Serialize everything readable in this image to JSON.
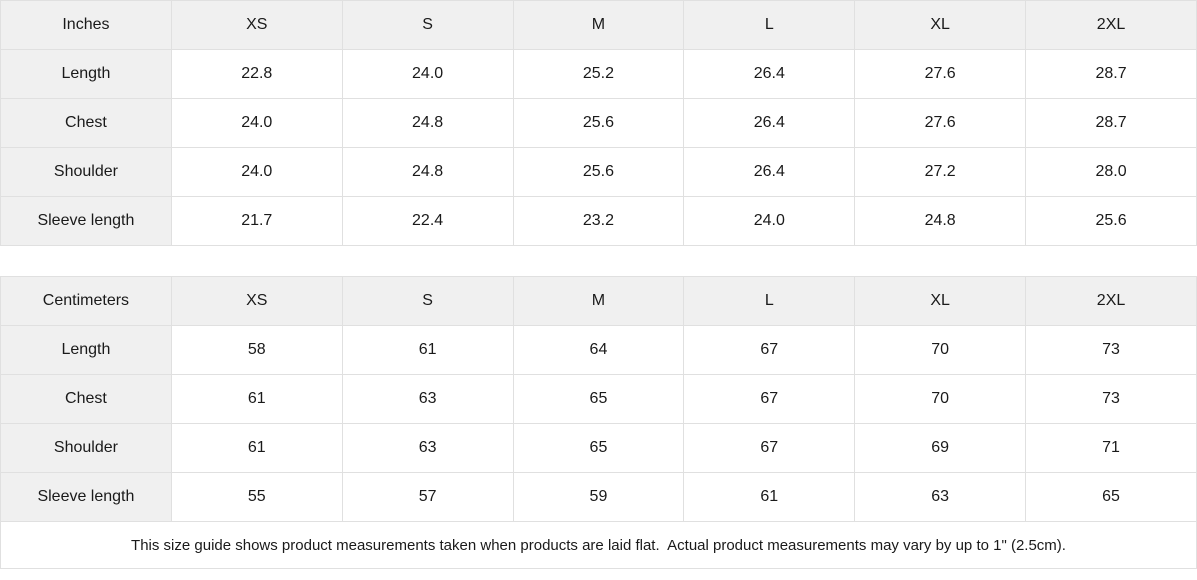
{
  "chart_data": [
    {
      "type": "table",
      "title": "Inches",
      "columns": [
        "Inches",
        "XS",
        "S",
        "M",
        "L",
        "XL",
        "2XL"
      ],
      "rows": [
        [
          "Length",
          "22.8",
          "24.0",
          "25.2",
          "26.4",
          "27.6",
          "28.7"
        ],
        [
          "Chest",
          "24.0",
          "24.8",
          "25.6",
          "26.4",
          "27.6",
          "28.7"
        ],
        [
          "Shoulder",
          "24.0",
          "24.8",
          "25.6",
          "26.4",
          "27.2",
          "28.0"
        ],
        [
          "Sleeve length",
          "21.7",
          "22.4",
          "23.2",
          "24.0",
          "24.8",
          "25.6"
        ]
      ]
    },
    {
      "type": "table",
      "title": "Centimeters",
      "columns": [
        "Centimeters",
        "XS",
        "S",
        "M",
        "L",
        "XL",
        "2XL"
      ],
      "rows": [
        [
          "Length",
          "58",
          "61",
          "64",
          "67",
          "70",
          "73"
        ],
        [
          "Chest",
          "61",
          "63",
          "65",
          "67",
          "70",
          "73"
        ],
        [
          "Shoulder",
          "61",
          "63",
          "65",
          "67",
          "69",
          "71"
        ],
        [
          "Sleeve length",
          "55",
          "57",
          "59",
          "61",
          "63",
          "65"
        ]
      ]
    }
  ],
  "footnote": "This size guide shows product measurements taken when products are laid flat.  Actual product measurements may vary by up to 1\" (2.5cm).",
  "colors": {
    "header_bg": "#f0f0f0",
    "border": "#e0e0e0",
    "text": "#1a1a1a",
    "cell_bg": "#ffffff"
  }
}
